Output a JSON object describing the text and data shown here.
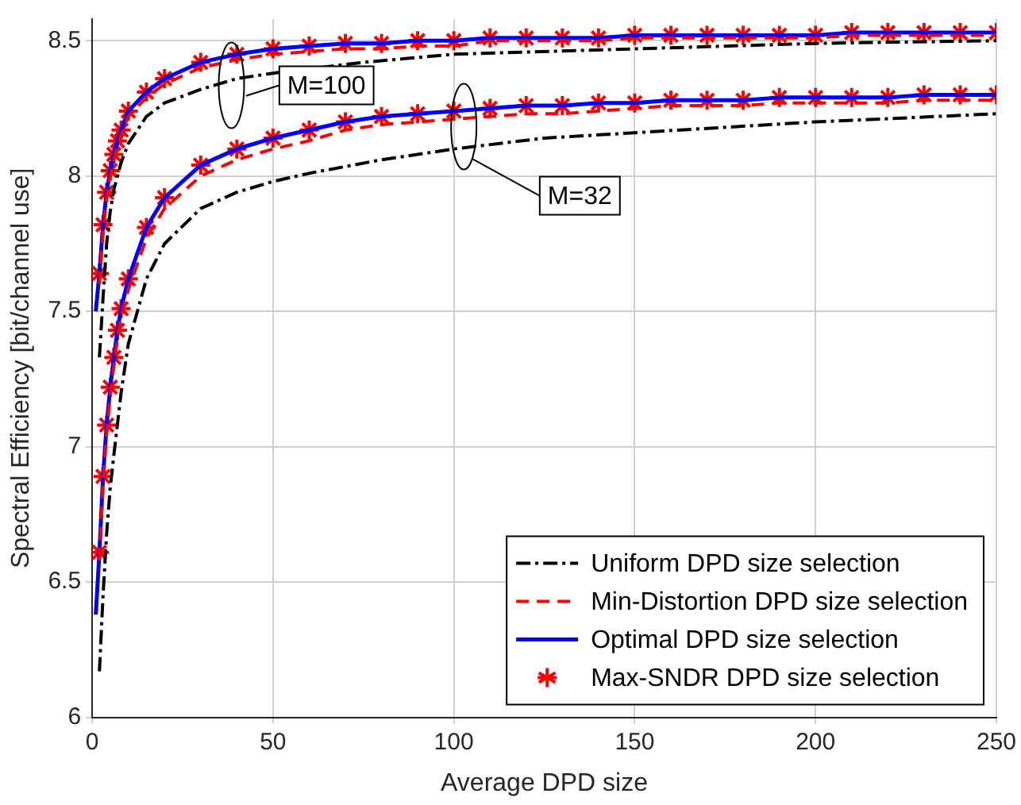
{
  "chart_data": {
    "type": "line",
    "xlabel": "Average DPD size",
    "ylabel": "Spectral Efficiency [bit/channel use]",
    "xlim": [
      0,
      250
    ],
    "xticks": [
      0,
      50,
      100,
      150,
      200,
      250
    ],
    "ylim": [
      6,
      8.58
    ],
    "yticks": [
      6,
      6.5,
      7,
      7.5,
      8,
      8.5
    ],
    "grid": true,
    "legend": "bottom right",
    "annotations": [
      "M=100",
      "M=32"
    ],
    "series": [
      {
        "name": "Uniform DPD size selection",
        "color": "#000000",
        "line_style": "dashdot",
        "marker": "none",
        "x": [
          2,
          3,
          4,
          5,
          6,
          8,
          10,
          15,
          20,
          30,
          40,
          50,
          75,
          100,
          150,
          200,
          250
        ],
        "values": [
          7.33,
          7.55,
          7.75,
          7.87,
          7.95,
          8.05,
          8.12,
          8.22,
          8.27,
          8.32,
          8.36,
          8.38,
          8.42,
          8.45,
          8.47,
          8.49,
          8.5
        ]
      },
      {
        "name": "Min-Distortion DPD size selection",
        "color": "#ff0000",
        "line_style": "dashed",
        "marker": "none",
        "x": [
          2,
          3,
          4,
          5,
          6,
          7,
          8,
          10,
          15,
          20,
          30,
          40,
          50,
          60,
          70,
          80,
          90,
          100,
          110,
          120,
          130,
          140,
          150,
          160,
          170,
          180,
          190,
          200,
          210,
          220,
          230,
          240,
          250
        ],
        "values": [
          7.6,
          7.79,
          7.92,
          8.0,
          8.06,
          8.11,
          8.15,
          8.22,
          8.29,
          8.34,
          8.4,
          8.43,
          8.45,
          8.46,
          8.47,
          8.47,
          8.48,
          8.48,
          8.5,
          8.5,
          8.5,
          8.5,
          8.51,
          8.51,
          8.51,
          8.51,
          8.51,
          8.51,
          8.52,
          8.52,
          8.52,
          8.52,
          8.52
        ]
      },
      {
        "name": "Optimal DPD size selection",
        "color": "#0000ff",
        "line_style": "solid",
        "marker": "none",
        "x": [
          1,
          2,
          3,
          4,
          5,
          6,
          7,
          8,
          10,
          15,
          20,
          30,
          40,
          50,
          60,
          70,
          80,
          90,
          100,
          110,
          120,
          130,
          140,
          150,
          160,
          170,
          180,
          190,
          200,
          210,
          220,
          230,
          240,
          250
        ],
        "values": [
          7.5,
          7.64,
          7.82,
          7.94,
          8.02,
          8.08,
          8.13,
          8.17,
          8.24,
          8.31,
          8.36,
          8.42,
          8.45,
          8.47,
          8.48,
          8.49,
          8.49,
          8.5,
          8.5,
          8.51,
          8.51,
          8.51,
          8.51,
          8.52,
          8.52,
          8.52,
          8.52,
          8.52,
          8.52,
          8.53,
          8.53,
          8.53,
          8.53,
          8.53
        ]
      },
      {
        "name": "Max-SNDR DPD size selection",
        "type": "scatter",
        "color": "#ff0000",
        "marker": "cross",
        "x": [
          2,
          3,
          4,
          5,
          6,
          7,
          8,
          10,
          15,
          20,
          30,
          40,
          50,
          60,
          70,
          80,
          90,
          100,
          110,
          120,
          130,
          140,
          150,
          160,
          170,
          180,
          190,
          200,
          210,
          220,
          230,
          240,
          250
        ],
        "values": [
          7.64,
          7.82,
          7.94,
          8.02,
          8.08,
          8.13,
          8.17,
          8.24,
          8.31,
          8.36,
          8.42,
          8.45,
          8.47,
          8.48,
          8.49,
          8.49,
          8.5,
          8.5,
          8.51,
          8.51,
          8.51,
          8.51,
          8.52,
          8.52,
          8.52,
          8.52,
          8.52,
          8.52,
          8.53,
          8.53,
          8.53,
          8.53,
          8.53
        ]
      },
      {
        "color": "#000000",
        "line_style": "dashdot",
        "marker": "none",
        "x": [
          2,
          3,
          4,
          5,
          6,
          8,
          10,
          15,
          20,
          30,
          40,
          50,
          60,
          80,
          100,
          125,
          150,
          200,
          250
        ],
        "values": [
          6.17,
          6.45,
          6.68,
          6.85,
          6.97,
          7.2,
          7.38,
          7.62,
          7.75,
          7.88,
          7.94,
          7.98,
          8.01,
          8.06,
          8.1,
          8.14,
          8.16,
          8.2,
          8.23
        ]
      },
      {
        "color": "#ff0000",
        "line_style": "dashed",
        "marker": "none",
        "x": [
          2,
          3,
          4,
          5,
          6,
          7,
          8,
          10,
          15,
          20,
          30,
          40,
          50,
          60,
          70,
          80,
          90,
          100,
          110,
          120,
          130,
          140,
          150,
          160,
          170,
          180,
          190,
          200,
          210,
          220,
          230,
          240,
          250
        ],
        "values": [
          6.58,
          6.86,
          7.05,
          7.19,
          7.3,
          7.4,
          7.48,
          7.58,
          7.77,
          7.88,
          8.0,
          8.06,
          8.1,
          8.13,
          8.17,
          8.19,
          8.2,
          8.21,
          8.22,
          8.23,
          8.23,
          8.24,
          8.25,
          8.26,
          8.26,
          8.26,
          8.27,
          8.27,
          8.27,
          8.27,
          8.28,
          8.28,
          8.28
        ]
      },
      {
        "color": "#0000ff",
        "line_style": "solid",
        "marker": "none",
        "x": [
          1,
          2,
          3,
          4,
          5,
          6,
          7,
          8,
          10,
          15,
          20,
          30,
          40,
          50,
          60,
          70,
          80,
          90,
          100,
          110,
          120,
          130,
          140,
          150,
          160,
          170,
          180,
          190,
          200,
          210,
          220,
          230,
          240,
          250
        ],
        "values": [
          6.38,
          6.61,
          6.89,
          7.08,
          7.22,
          7.33,
          7.43,
          7.51,
          7.62,
          7.81,
          7.92,
          8.04,
          8.1,
          8.14,
          8.17,
          8.2,
          8.22,
          8.23,
          8.24,
          8.25,
          8.26,
          8.26,
          8.27,
          8.27,
          8.28,
          8.28,
          8.28,
          8.29,
          8.29,
          8.29,
          8.29,
          8.3,
          8.3,
          8.3
        ]
      },
      {
        "type": "scatter",
        "color": "#ff0000",
        "marker": "cross",
        "x": [
          2,
          3,
          4,
          5,
          6,
          7,
          8,
          10,
          15,
          20,
          30,
          40,
          50,
          60,
          70,
          80,
          90,
          100,
          110,
          120,
          130,
          140,
          150,
          160,
          170,
          180,
          190,
          200,
          210,
          220,
          230,
          240,
          250
        ],
        "values": [
          6.61,
          6.89,
          7.08,
          7.22,
          7.33,
          7.43,
          7.51,
          7.62,
          7.81,
          7.92,
          8.04,
          8.1,
          8.14,
          8.17,
          8.2,
          8.22,
          8.23,
          8.24,
          8.25,
          8.26,
          8.26,
          8.27,
          8.27,
          8.28,
          8.28,
          8.28,
          8.29,
          8.29,
          8.29,
          8.29,
          8.3,
          8.3,
          8.3
        ]
      }
    ]
  }
}
